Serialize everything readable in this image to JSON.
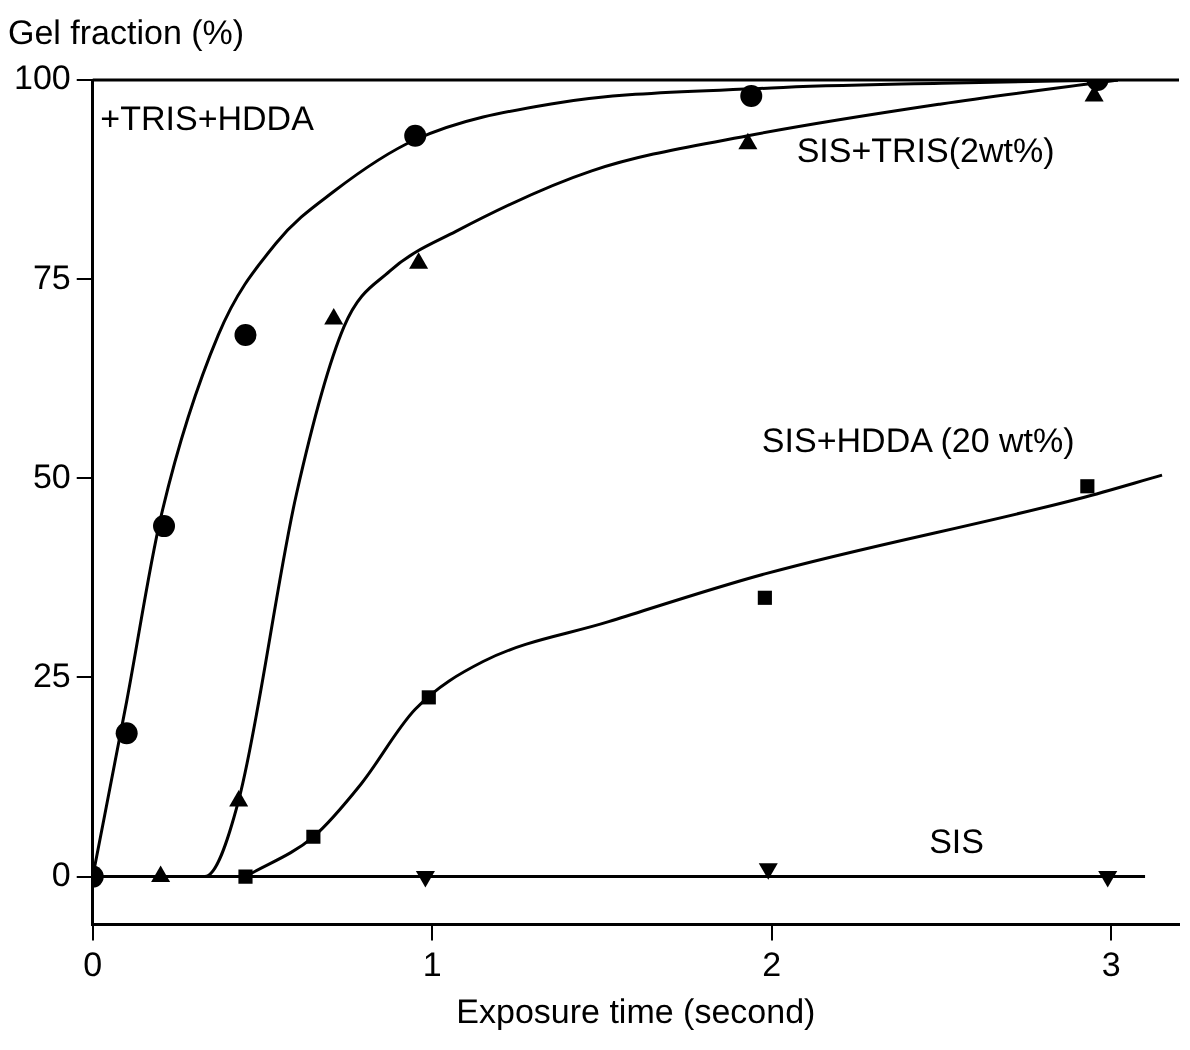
{
  "chart_data": {
    "type": "scatter",
    "xlabel": "Exposure time (second)",
    "ylabel": "Gel fraction (%)",
    "xlim": [
      0,
      3.2
    ],
    "xticks": [
      0,
      1,
      2,
      3
    ],
    "ylim": [
      -6,
      100
    ],
    "yticks": [
      0,
      25,
      50,
      75,
      100
    ],
    "grid": false,
    "series": [
      {
        "type": "scatter",
        "name": "+TRIS+HDDA",
        "marker": "circle",
        "color": "#000000",
        "x": [
          0,
          0.1,
          0.21,
          0.45,
          0.95,
          1.94,
          2.96
        ],
        "values": [
          0,
          18,
          44,
          68,
          93,
          98,
          100
        ]
      },
      {
        "type": "scatter",
        "name": "SIS+TRIS(2wt%)",
        "marker": "triangle",
        "color": "#000000",
        "x": [
          0.2,
          0.43,
          0.71,
          0.96,
          1.93,
          2.95
        ],
        "values": [
          0,
          9.5,
          70,
          77,
          92,
          98
        ]
      },
      {
        "type": "scatter",
        "name": "SIS+HDDA (20 wt%)",
        "marker": "square",
        "color": "#000000",
        "x": [
          0.45,
          0.65,
          0.99,
          1.98,
          2.93
        ],
        "values": [
          0,
          5,
          22.5,
          35,
          49
        ]
      },
      {
        "type": "scatter",
        "marker": "triangle_down",
        "color": "#000000",
        "x": [
          0.98,
          1.99,
          2.99
        ],
        "values": [
          0,
          1,
          0
        ]
      },
      {
        "type": "line",
        "marker": "none",
        "color": "#000000",
        "x": [
          0,
          0.1,
          0.2,
          0.37,
          0.54,
          0.71,
          0.95,
          1.35,
          2.0,
          2.5,
          3.02
        ],
        "values": [
          0,
          22,
          45,
          68,
          79.5,
          86,
          92.5,
          97,
          99,
          99.6,
          100
        ]
      },
      {
        "type": "line",
        "marker": "none",
        "color": "#000000",
        "x": [
          0.2,
          0.33,
          0.43,
          0.6,
          0.74,
          0.875,
          1.07,
          1.47,
          1.93,
          2.5,
          3.02
        ],
        "values": [
          0,
          0,
          9.6,
          48,
          69,
          76,
          81,
          88.6,
          93,
          97,
          100
        ]
      },
      {
        "type": "line",
        "marker": "none",
        "color": "#000000",
        "x": [
          0.45,
          0.65,
          0.79,
          0.95,
          1.15,
          1.52,
          1.98,
          2.91,
          3.15
        ],
        "values": [
          0,
          5,
          11.6,
          21,
          27,
          32,
          38,
          47.5,
          50.4
        ]
      },
      {
        "type": "line",
        "name": "SIS",
        "marker": "none",
        "color": "#000000",
        "x": [
          0,
          3.1
        ],
        "values": [
          0,
          0
        ]
      }
    ],
    "ref_lines": [
      {
        "axis": "y",
        "value": 100,
        "color": "#000000"
      }
    ]
  }
}
